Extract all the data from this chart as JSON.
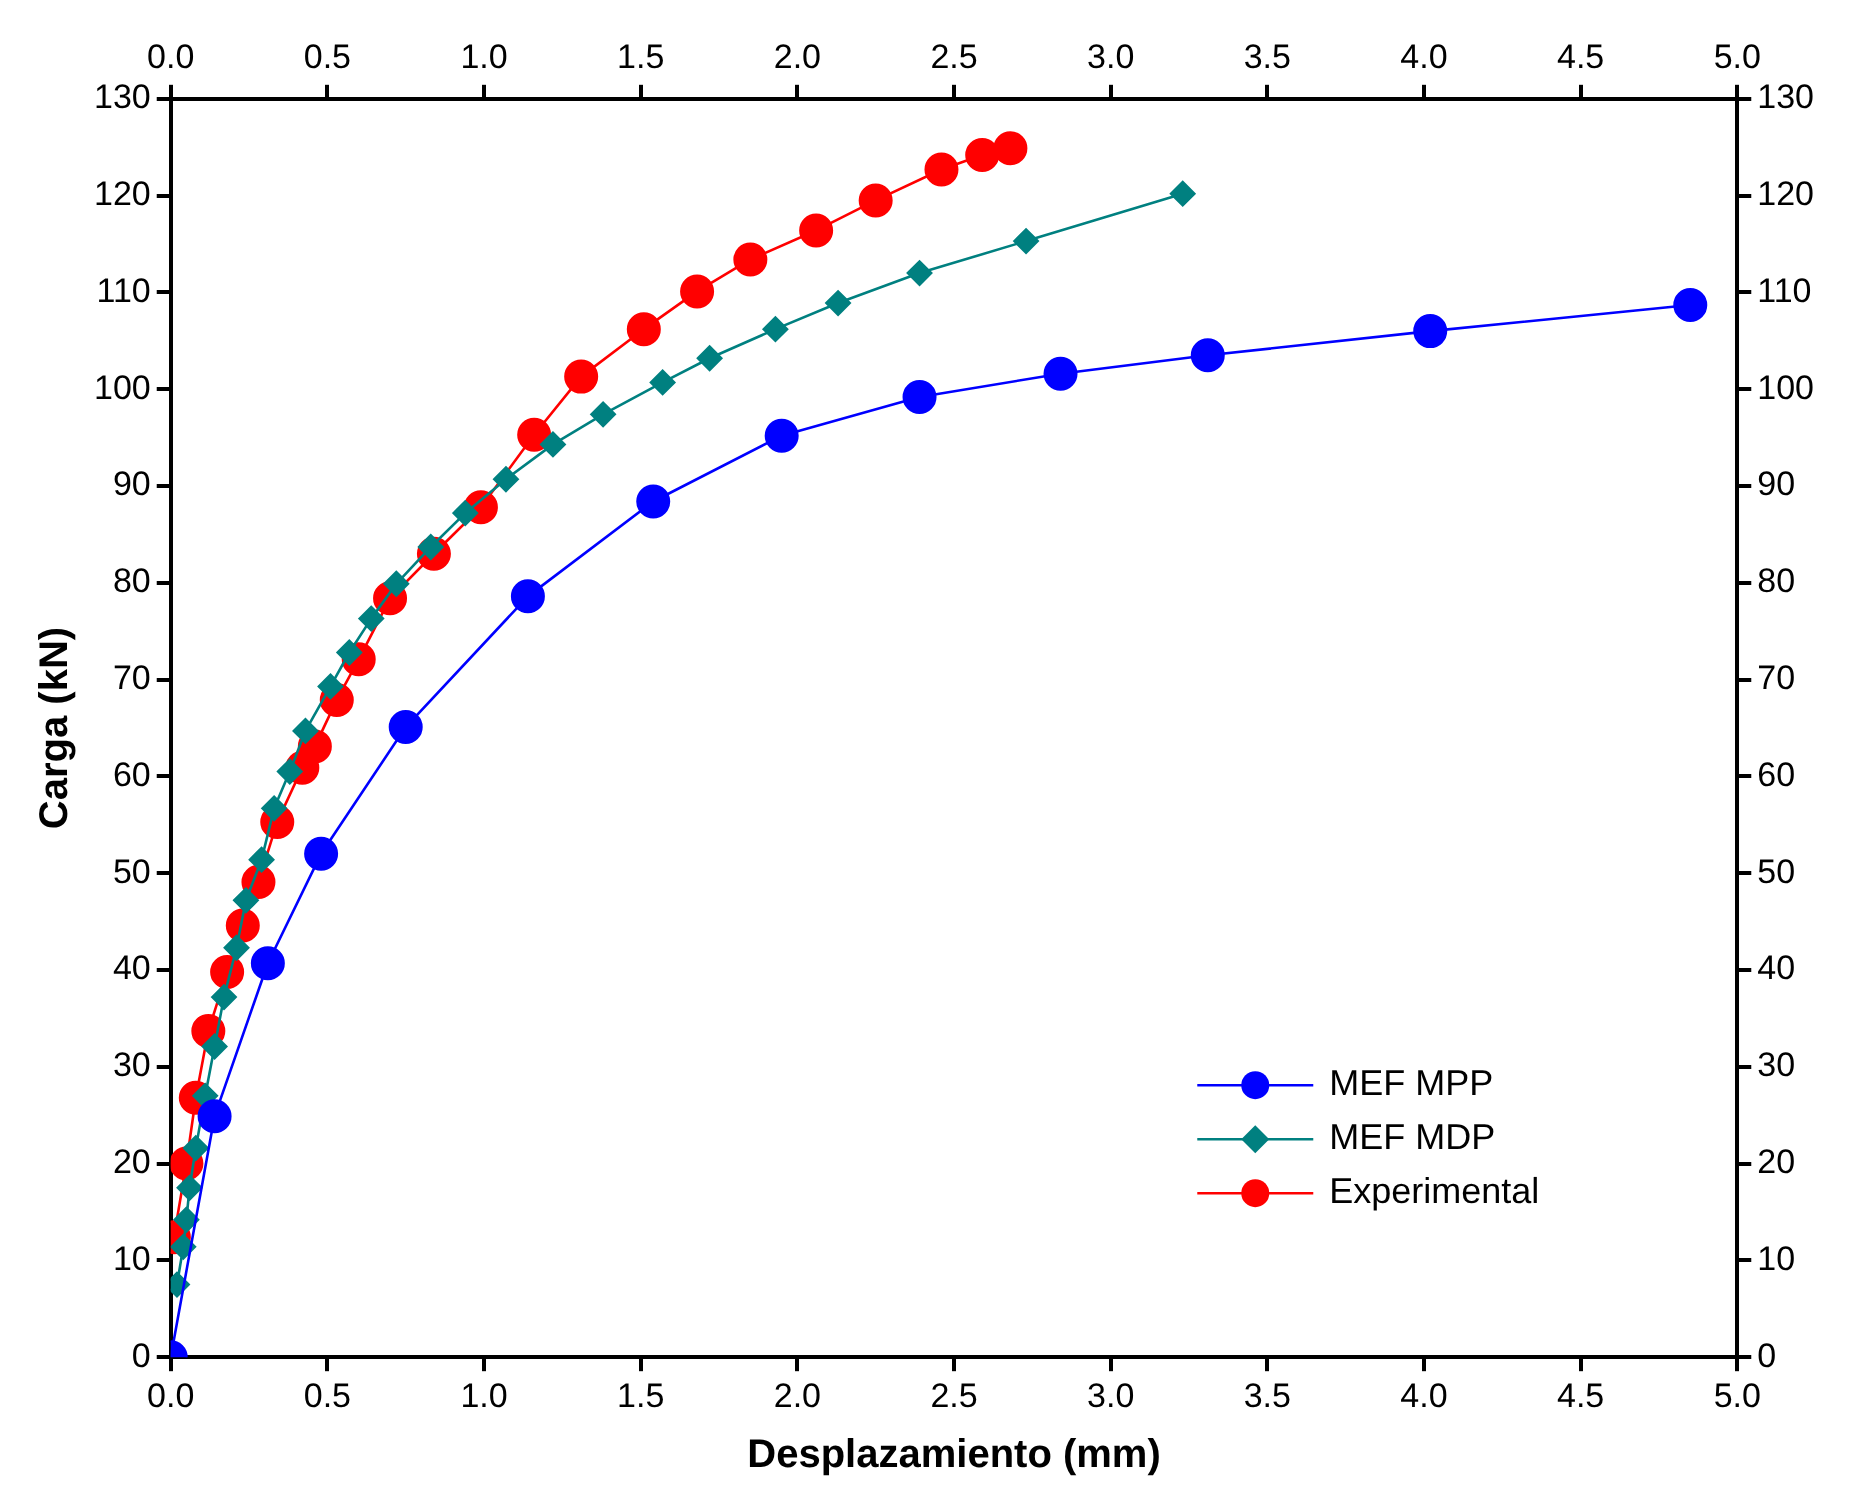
{
  "chart_data": {
    "type": "line",
    "xlabel": "Desplazamiento (mm)",
    "ylabel": "Carga (kN)",
    "xlim": [
      0,
      5
    ],
    "xticks": [
      {
        "value": 0,
        "label": "0.0"
      },
      {
        "value": 0.5,
        "label": "0.5"
      },
      {
        "value": 1,
        "label": "1.0"
      },
      {
        "value": 1.5,
        "label": "1.5"
      },
      {
        "value": 2,
        "label": "2.0"
      },
      {
        "value": 2.5,
        "label": "2.5"
      },
      {
        "value": 3,
        "label": "3.0"
      },
      {
        "value": 3.5,
        "label": "3.5"
      },
      {
        "value": 4,
        "label": "4.0"
      },
      {
        "value": 4.5,
        "label": "4.5"
      },
      {
        "value": 5,
        "label": "5.0"
      }
    ],
    "x2lim": [
      0,
      5
    ],
    "x2ticks": [
      {
        "value": 0,
        "label": "0.0"
      },
      {
        "value": 0.5,
        "label": "0.5"
      },
      {
        "value": 1,
        "label": "1.0"
      },
      {
        "value": 1.5,
        "label": "1.5"
      },
      {
        "value": 2,
        "label": "2.0"
      },
      {
        "value": 2.5,
        "label": "2.5"
      },
      {
        "value": 3,
        "label": "3.0"
      },
      {
        "value": 3.5,
        "label": "3.5"
      },
      {
        "value": 4,
        "label": "4.0"
      },
      {
        "value": 4.5,
        "label": "4.5"
      },
      {
        "value": 5,
        "label": "5.0"
      }
    ],
    "ylim": [
      0,
      130
    ],
    "yticks": [
      0,
      10,
      20,
      30,
      40,
      50,
      60,
      70,
      80,
      90,
      100,
      110,
      120,
      130
    ],
    "y2lim": [
      0,
      130
    ],
    "y2ticks": [
      0,
      10,
      20,
      30,
      40,
      50,
      60,
      70,
      80,
      90,
      100,
      110,
      120,
      130
    ],
    "grid": false,
    "legend": "bottom right",
    "line_style": "solid",
    "series": [
      {
        "name": "MEF MPP",
        "color": "#0000ff",
        "marker": "circle",
        "x": [
          0,
          0.14,
          0.31,
          0.48,
          0.75,
          1.14,
          1.54,
          1.95,
          2.39,
          2.84,
          3.31,
          4.02,
          4.85
        ],
        "values": [
          0,
          24.9,
          40.7,
          52.0,
          65.1,
          78.6,
          88.4,
          95.2,
          99.2,
          101.6,
          103.5,
          106.0,
          108.7
        ]
      },
      {
        "name": "MEF MDP",
        "color": "#008080",
        "marker": "diamond",
        "x": [
          0.02,
          0.04,
          0.05,
          0.06,
          0.08,
          0.11,
          0.14,
          0.17,
          0.21,
          0.24,
          0.29,
          0.33,
          0.38,
          0.43,
          0.51,
          0.57,
          0.64,
          0.72,
          0.83,
          0.94,
          1.07,
          1.22,
          1.38,
          1.57,
          1.72,
          1.93,
          2.13,
          2.39,
          2.73,
          3.23
        ],
        "values": [
          7.5,
          11.4,
          14.2,
          17.5,
          21.6,
          27.0,
          32.1,
          37.2,
          42.3,
          47.2,
          51.4,
          56.7,
          60.5,
          64.7,
          69.3,
          72.8,
          76.3,
          79.9,
          83.7,
          87.2,
          90.7,
          94.3,
          97.4,
          100.7,
          103.2,
          106.2,
          108.9,
          112.0,
          115.3,
          120.2
        ]
      },
      {
        "name": "Experimental",
        "color": "#ff0000",
        "marker": "circle",
        "x": [
          0.01,
          0.05,
          0.08,
          0.12,
          0.18,
          0.23,
          0.28,
          0.34,
          0.42,
          0.46,
          0.53,
          0.6,
          0.7,
          0.84,
          0.99,
          1.16,
          1.31,
          1.51,
          1.68,
          1.85,
          2.06,
          2.25,
          2.46,
          2.59,
          2.68
        ],
        "values": [
          12.4,
          20.0,
          26.8,
          33.7,
          39.8,
          44.6,
          49.1,
          55.3,
          60.9,
          63.1,
          67.9,
          72.1,
          78.4,
          83.0,
          87.8,
          95.3,
          101.3,
          106.2,
          110.1,
          113.4,
          116.4,
          119.5,
          122.7,
          124.2,
          124.9
        ]
      }
    ]
  }
}
